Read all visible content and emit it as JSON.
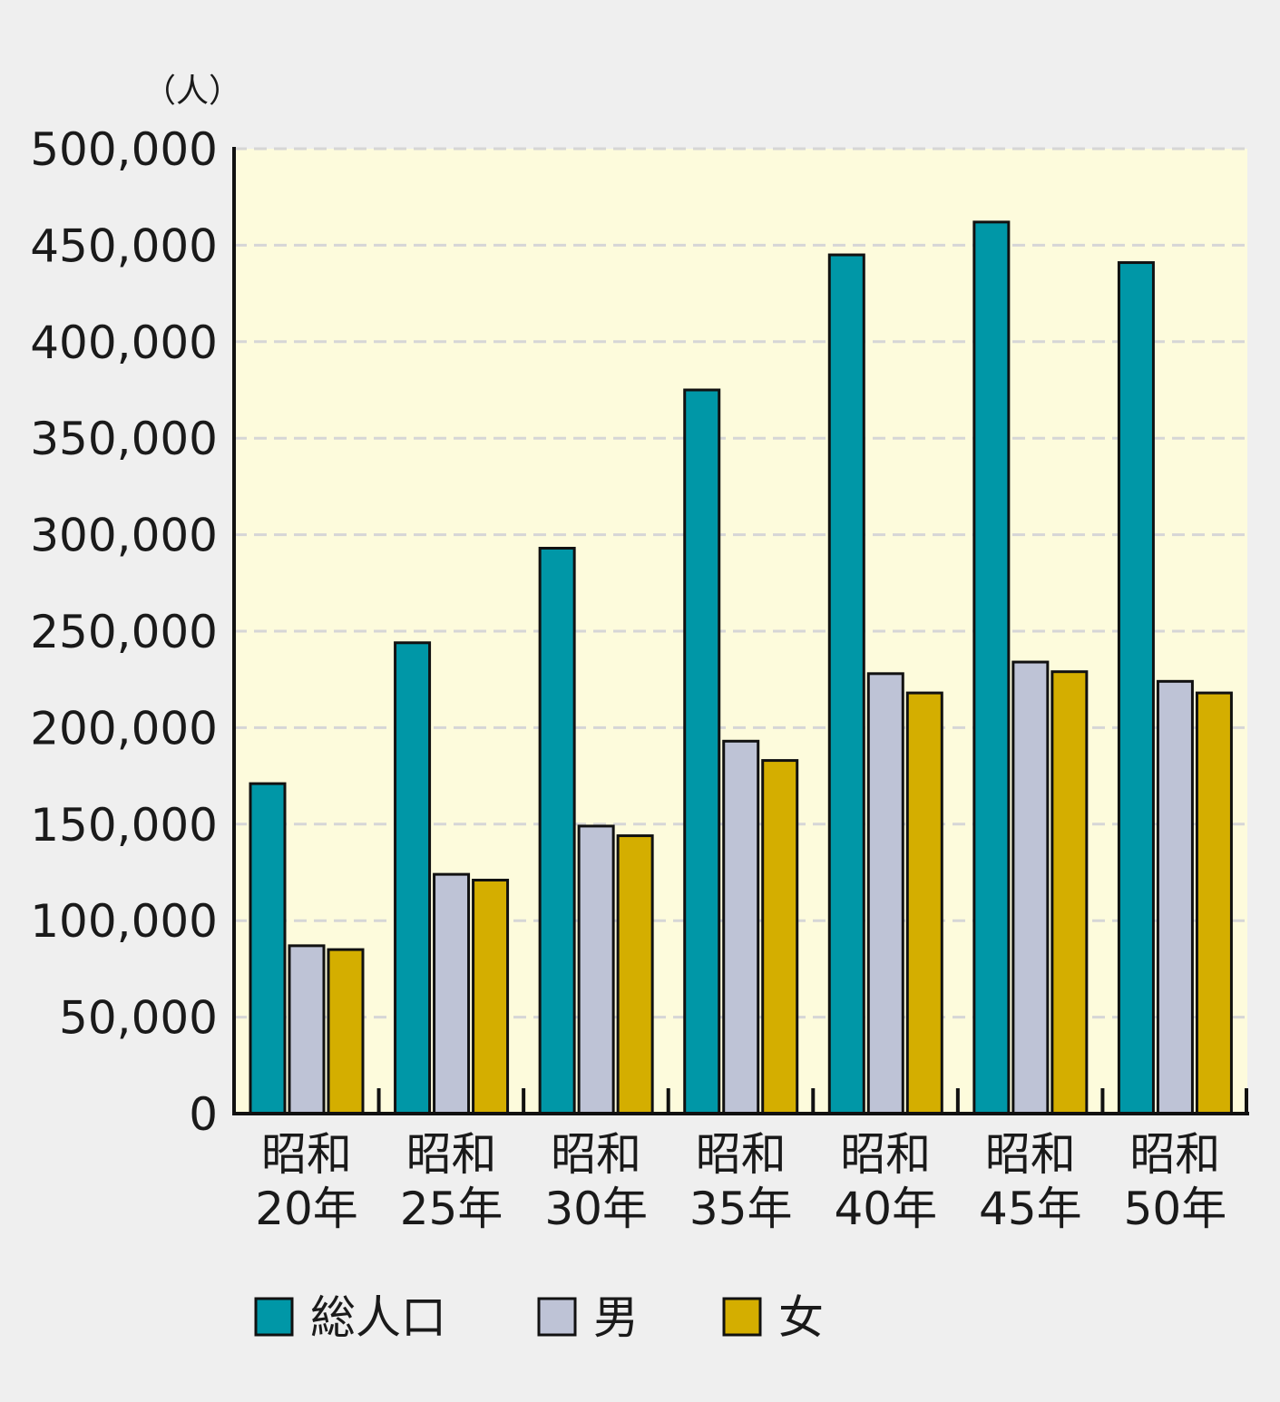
{
  "chart_data": {
    "type": "bar",
    "unit_label": "（人）",
    "categories": [
      [
        "昭和",
        "20年"
      ],
      [
        "昭和",
        "25年"
      ],
      [
        "昭和",
        "30年"
      ],
      [
        "昭和",
        "35年"
      ],
      [
        "昭和",
        "40年"
      ],
      [
        "昭和",
        "45年"
      ],
      [
        "昭和",
        "50年"
      ]
    ],
    "series": [
      {
        "name": "総人口",
        "color": "#0097a7",
        "values": [
          171000,
          244000,
          293000,
          375000,
          445000,
          462000,
          441000
        ]
      },
      {
        "name": "男",
        "color": "#bec3d6",
        "values": [
          87000,
          124000,
          149000,
          193000,
          228000,
          234000,
          224000
        ]
      },
      {
        "name": "女",
        "color": "#d4ae00",
        "values": [
          85000,
          121000,
          144000,
          183000,
          218000,
          229000,
          218000
        ]
      }
    ],
    "ylim": [
      0,
      500000
    ],
    "y_ticks": [
      "0",
      "50,000",
      "100,000",
      "150,000",
      "200,000",
      "250,000",
      "300,000",
      "350,000",
      "400,000",
      "450,000",
      "500,000"
    ],
    "plot_background": "#fdfbdc",
    "grid": true,
    "legend_position": "bottom"
  }
}
